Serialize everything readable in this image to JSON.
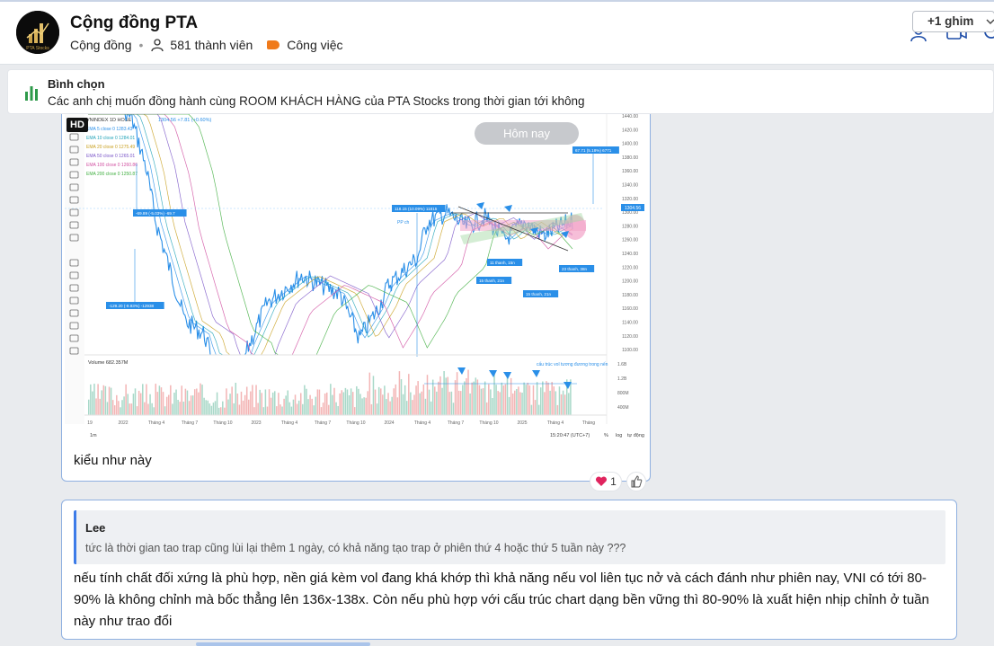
{
  "header": {
    "group_name": "Cộng đồng PTA",
    "type": "Cộng đồng",
    "members": "581 thành viên",
    "category": "Công việc",
    "logo_text": "PTA Stocks"
  },
  "poll": {
    "title": "Bình chọn",
    "question": "Các anh chị muốn đồng hành cùng ROOM KHÁCH HÀNG  của PTA Stocks trong thời gian tới không",
    "pin_label": "+1 ghim"
  },
  "message1": {
    "hd_label": "HD",
    "today_label": "Hôm nay",
    "text": "kiểu như này",
    "reaction_count": "1"
  },
  "chart": {
    "symbol": "VNINDEX  1D  HOSE",
    "last_price": "1304.56 +7.81 (+0.60%)",
    "ema_labels": [
      "EMA 5 close 0  1283.43",
      "EMA 10 close 0  1284.01",
      "EMA 20 close 0  1275.49",
      "EMA 50 close 0  1265.01",
      "EMA 100 close 0  1260.86",
      "EMA 200 close 0  1250.87"
    ],
    "price_ticks": [
      "1440.00",
      "1420.00",
      "1400.00",
      "1380.00",
      "1360.00",
      "1340.00",
      "1320.00",
      "1300.00",
      "1280.00",
      "1260.00",
      "1240.00",
      "1220.00",
      "1200.00",
      "1180.00",
      "1160.00",
      "1140.00",
      "1120.00",
      "1100.00"
    ],
    "price_tag": "1304.56",
    "volume_label": "Volume  682.357M",
    "volume_ticks": [
      "1.6B",
      "1.2B",
      "800M",
      "400M"
    ],
    "volume_note": "cấu trúc vol tương đương trong nến",
    "x_ticks": [
      "19",
      "2022",
      "Tháng 4",
      "Tháng 7",
      "Tháng 10",
      "2023",
      "Tháng 4",
      "Tháng 7",
      "Tháng 10",
      "2024",
      "Tháng 4",
      "Tháng 7",
      "Tháng 10",
      "2025",
      "Tháng 4",
      "Tháng"
    ],
    "annotations": [
      "-69.89 (-5.03%) -69.7",
      "-129.20 (-9.93%) -12938",
      "118.15 (10.09%) 11815",
      "67.71 (5.18%) 6771",
      "11 thanh, 15n",
      "15 thanh, 21n",
      "15 thanh, 21n",
      "23 thanh, 38n",
      "PP ch"
    ],
    "bottom_left": "1m",
    "bottom_time": "15:20:47 (UTC+7)",
    "bottom_right": [
      "%",
      "log",
      "tự động"
    ]
  },
  "message2": {
    "quote_author": "Lee",
    "quote_text": "tức là thời gian tao trap cũng lùi lại thêm 1 ngày, có khả năng tạo trap ở phiên thứ 4 hoặc thứ 5 tuần này ???",
    "text": "nếu tính chất đối xứng là phù hợp, nền giá kèm vol đang khá khớp thì khả năng nếu vol liên tục nở và cách đánh như phiên nay, VNI có tới 80-90% là không chỉnh mà bốc thẳng lên 136x-138x. Còn nếu phù hợp với cấu trúc chart dạng bền vững thì 80-90% là xuất hiện nhịp chỉnh ở tuần này như trao đổi"
  },
  "colors": {
    "accent": "#3c7be8",
    "tag": "#f07a1a",
    "price_line": "#2a8fe8",
    "heart": "#e0245e"
  }
}
